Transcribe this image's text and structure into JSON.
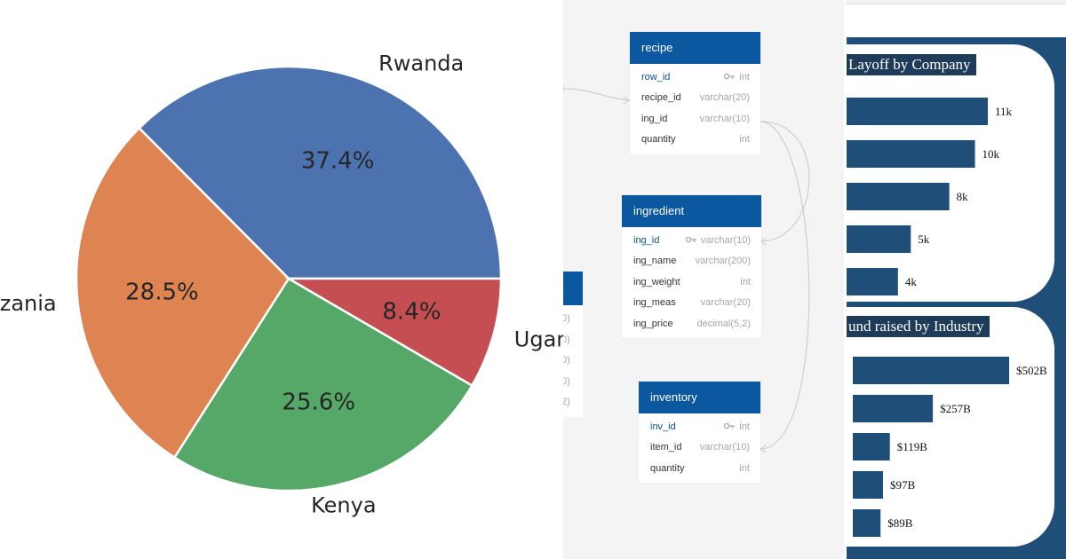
{
  "chart_data": [
    {
      "type": "pie",
      "labels": [
        "Rwanda",
        "Tanzania",
        "Kenya",
        "Uganda"
      ],
      "values": [
        37.4,
        28.5,
        25.6,
        8.4
      ],
      "pct_labels": [
        "37.4%",
        "28.5%",
        "25.6%",
        "8.4%"
      ],
      "colors": [
        "#4c72b0",
        "#dd8452",
        "#55a868",
        "#c44e52"
      ]
    },
    {
      "type": "bar",
      "title": "Layoff by Company",
      "values": [
        11000,
        10000,
        8000,
        5000,
        4000
      ],
      "value_labels": [
        "11k",
        "10k",
        "8k",
        "5k",
        "4k"
      ],
      "color": "#1f4e79"
    },
    {
      "type": "bar",
      "title": "und raised by Industry",
      "values": [
        502,
        257,
        119,
        97,
        89
      ],
      "value_labels": [
        "$502B",
        "$257B",
        "$119B",
        "$97B",
        "$89B"
      ],
      "color": "#1f4e79"
    }
  ],
  "schema": {
    "accent": "#0b57a0",
    "tables": [
      {
        "name": "recipe",
        "columns": [
          {
            "name": "row_id",
            "type": "int",
            "pk": true
          },
          {
            "name": "recipe_id",
            "type": "varchar(20)",
            "pk": false
          },
          {
            "name": "ing_id",
            "type": "varchar(10)",
            "pk": false
          },
          {
            "name": "quantity",
            "type": "int",
            "pk": false
          }
        ]
      },
      {
        "name": "ingredient",
        "columns": [
          {
            "name": "ing_id",
            "type": "varchar(10)",
            "pk": true
          },
          {
            "name": "ing_name",
            "type": "varchar(200)",
            "pk": false
          },
          {
            "name": "ing_weight",
            "type": "int",
            "pk": false
          },
          {
            "name": "ing_meas",
            "type": "varchar(20)",
            "pk": false
          },
          {
            "name": "ing_price",
            "type": "decimal(5,2)",
            "pk": false
          }
        ]
      },
      {
        "name": "inventory",
        "columns": [
          {
            "name": "inv_id",
            "type": "int",
            "pk": true
          },
          {
            "name": "item_id",
            "type": "varchar(10)",
            "pk": false
          },
          {
            "name": "quantity",
            "type": "int",
            "pk": false
          }
        ]
      }
    ],
    "partial_digits": [
      "0)",
      "0)",
      "0)",
      "0)",
      "2)"
    ]
  }
}
